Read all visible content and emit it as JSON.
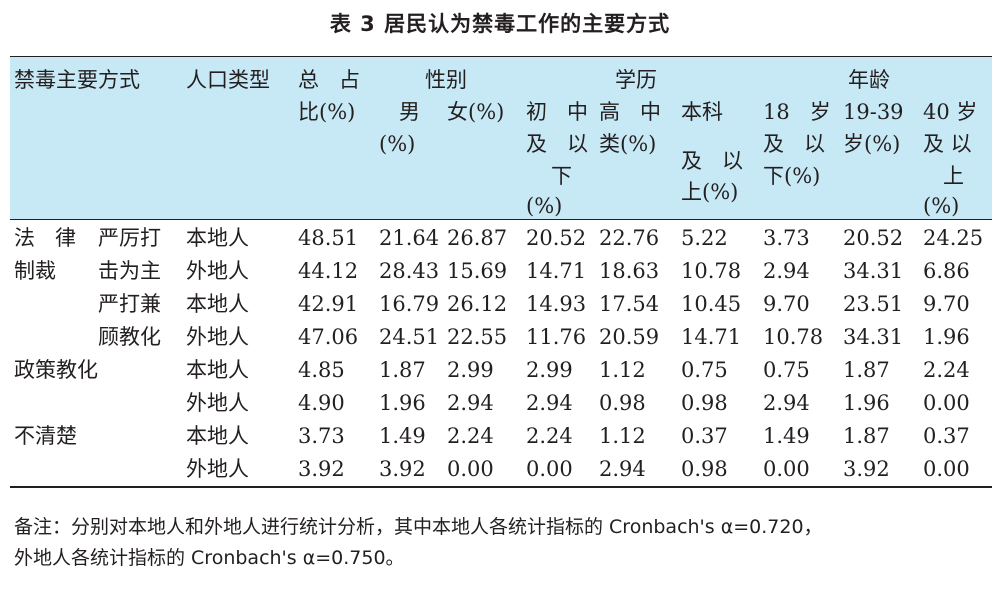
{
  "title": "表 3  居民认为禁毒工作的主要方式",
  "header": {
    "col_method": "禁毒主要方式",
    "col_pop": "人口类型",
    "col_total_1": "总   占",
    "col_total_2": "比(%)",
    "group_gender": "性别",
    "group_edu": "学历",
    "group_age": "年龄",
    "male_1": "男",
    "male_2": "(%)",
    "female": "女(%)",
    "edu1_1": "初   中",
    "edu1_2": "及   以",
    "edu1_3": "下",
    "edu1_4": "(%)",
    "edu2_1": "高   中",
    "edu2_2": "类(%)",
    "edu3_1": "本科",
    "edu3_2": "及   以",
    "edu3_3": "上(%)",
    "age1_1": "18   岁",
    "age1_2": "及   以",
    "age1_3": "下(%)",
    "age2_1": "19-39",
    "age2_2": "岁(%)",
    "age3_1": "40 岁",
    "age3_2": "及 以",
    "age3_3": "上",
    "age3_4": "(%)"
  },
  "row_labels": {
    "law_1": "法   律",
    "law_2": "制裁",
    "strike_1": "严厉打",
    "strike_2": "击为主",
    "both_1": "严打兼",
    "both_2": "顾教化",
    "policy": "政策教化",
    "unclear": "不清楚"
  },
  "rows": [
    {
      "pop": "本地人",
      "vals": [
        "48.51",
        "21.64",
        "26.87",
        "20.52",
        "22.76",
        "5.22",
        "3.73",
        "20.52",
        "24.25"
      ]
    },
    {
      "pop": "外地人",
      "vals": [
        "44.12",
        "28.43",
        "15.69",
        "14.71",
        "18.63",
        "10.78",
        "2.94",
        "34.31",
        "6.86"
      ]
    },
    {
      "pop": "本地人",
      "vals": [
        "42.91",
        "16.79",
        "26.12",
        "14.93",
        "17.54",
        "10.45",
        "9.70",
        "23.51",
        "9.70"
      ]
    },
    {
      "pop": "外地人",
      "vals": [
        "47.06",
        "24.51",
        "22.55",
        "11.76",
        "20.59",
        "14.71",
        "10.78",
        "34.31",
        "1.96"
      ]
    },
    {
      "pop": "本地人",
      "vals": [
        "4.85",
        "1.87",
        "2.99",
        "2.99",
        "1.12",
        "0.75",
        "0.75",
        "1.87",
        "2.24"
      ]
    },
    {
      "pop": "外地人",
      "vals": [
        "4.90",
        "1.96",
        "2.94",
        "2.94",
        "0.98",
        "0.98",
        "2.94",
        "1.96",
        "0.00"
      ]
    },
    {
      "pop": "本地人",
      "vals": [
        "3.73",
        "1.49",
        "2.24",
        "2.24",
        "1.12",
        "0.37",
        "1.49",
        "1.87",
        "0.37"
      ]
    },
    {
      "pop": "外地人",
      "vals": [
        "3.92",
        "3.92",
        "0.00",
        "0.00",
        "2.94",
        "0.98",
        "0.00",
        "3.92",
        "0.00"
      ]
    }
  ],
  "note_line1": "备注：分别对本地人和外地人进行统计分析，其中本地人各统计指标的 Cronbach's α=0.720，",
  "note_line2": "外地人各统计指标的 Cronbach's α=0.750。",
  "colors": {
    "header_bg": "#c7e8f5",
    "text": "#231f20"
  }
}
